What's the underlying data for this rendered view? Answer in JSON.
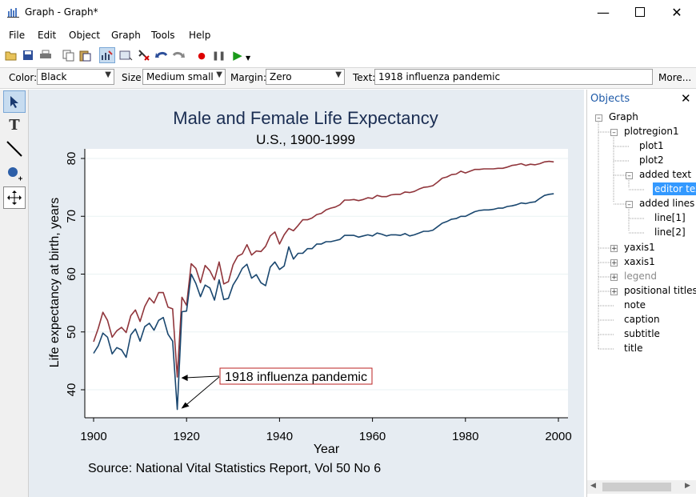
{
  "window": {
    "title": "Graph - Graph*"
  },
  "menu": [
    "File",
    "Edit",
    "Object",
    "Graph",
    "Tools",
    "Help"
  ],
  "propbar": {
    "color_label": "Color:",
    "color_value": "Black",
    "size_label": "Size:",
    "size_value": "Medium small",
    "margin_label": "Margin:",
    "margin_value": "Zero",
    "text_label": "Text:",
    "text_value": "1918 influenza pandemic",
    "more": "More..."
  },
  "objects": {
    "header": "Objects",
    "items": [
      "Graph",
      "plotregion1",
      "plot1",
      "plot2",
      "added text",
      "editor tex",
      "added lines",
      "line[1]",
      "line[2]",
      "yaxis1",
      "xaxis1",
      "legend",
      "positional titles",
      "note",
      "caption",
      "subtitle",
      "title"
    ]
  },
  "graph": {
    "title": "Male and Female Life Expectancy",
    "subtitle": "U.S., 1900-1999",
    "note": "Source: National Vital Statistics Report, Vol 50 No 6",
    "annotation": "1918 influenza pandemic"
  },
  "chart_data": {
    "type": "line",
    "xlabel": "Year",
    "ylabel": "Life expectancy at birth, years",
    "xlim": [
      1900,
      2000
    ],
    "ylim": [
      36,
      82
    ],
    "xticks": [
      1900,
      1920,
      1940,
      1960,
      1980,
      2000
    ],
    "yticks": [
      40,
      50,
      60,
      70,
      80
    ],
    "grid": true,
    "legend": "none",
    "colors": {
      "female": "#90353b",
      "male": "#1a476f"
    },
    "x": [
      1900,
      1901,
      1902,
      1903,
      1904,
      1905,
      1906,
      1907,
      1908,
      1909,
      1910,
      1911,
      1912,
      1913,
      1914,
      1915,
      1916,
      1917,
      1918,
      1919,
      1920,
      1921,
      1922,
      1923,
      1924,
      1925,
      1926,
      1927,
      1928,
      1929,
      1930,
      1931,
      1932,
      1933,
      1934,
      1935,
      1936,
      1937,
      1938,
      1939,
      1940,
      1941,
      1942,
      1943,
      1944,
      1945,
      1946,
      1947,
      1948,
      1949,
      1950,
      1951,
      1952,
      1953,
      1954,
      1955,
      1956,
      1957,
      1958,
      1959,
      1960,
      1961,
      1962,
      1963,
      1964,
      1965,
      1966,
      1967,
      1968,
      1969,
      1970,
      1971,
      1972,
      1973,
      1974,
      1975,
      1976,
      1977,
      1978,
      1979,
      1980,
      1981,
      1982,
      1983,
      1984,
      1985,
      1986,
      1987,
      1988,
      1989,
      1990,
      1991,
      1992,
      1993,
      1994,
      1995,
      1996,
      1997,
      1998,
      1999
    ],
    "series": [
      {
        "values": [
          48.3,
          50.6,
          53.4,
          52.0,
          49.1,
          50.2,
          50.8,
          49.9,
          52.8,
          53.8,
          51.8,
          54.4,
          55.9,
          55.0,
          56.8,
          56.8,
          54.3,
          54.0,
          42.2,
          56.0,
          54.6,
          61.8,
          61.0,
          58.5,
          61.5,
          60.6,
          59.0,
          62.1,
          58.3,
          58.7,
          61.6,
          63.1,
          63.5,
          65.1,
          63.3,
          64.0,
          63.9,
          64.8,
          66.6,
          67.3,
          65.2,
          66.8,
          67.9,
          67.5,
          68.4,
          69.4,
          69.4,
          69.7,
          70.3,
          70.5,
          71.1,
          71.4,
          71.6,
          72.0,
          72.8,
          72.8,
          72.9,
          72.7,
          72.9,
          73.2,
          73.1,
          73.6,
          73.4,
          73.4,
          73.7,
          73.8,
          73.8,
          74.2,
          74.1,
          74.3,
          74.7,
          75.0,
          75.1,
          75.3,
          75.9,
          76.6,
          76.8,
          77.2,
          77.3,
          77.8,
          77.5,
          77.8,
          78.1,
          78.1,
          78.2,
          78.2,
          78.2,
          78.3,
          78.3,
          78.5,
          78.8,
          78.9,
          79.1,
          78.8,
          79.0,
          78.9,
          79.1,
          79.4,
          79.5,
          79.4
        ]
      },
      {
        "values": [
          46.3,
          47.6,
          49.8,
          49.1,
          46.2,
          47.3,
          46.9,
          45.6,
          49.5,
          50.5,
          48.4,
          50.9,
          51.5,
          50.3,
          52.0,
          52.5,
          49.6,
          48.4,
          36.6,
          53.5,
          53.6,
          60.0,
          58.4,
          56.1,
          58.1,
          57.6,
          55.5,
          59.0,
          55.6,
          55.8,
          58.1,
          59.4,
          61.0,
          61.7,
          59.3,
          59.9,
          58.5,
          58.0,
          61.2,
          62.1,
          60.8,
          61.4,
          64.7,
          62.6,
          63.6,
          63.6,
          64.4,
          64.4,
          65.2,
          65.2,
          65.6,
          65.6,
          65.8,
          66.0,
          66.7,
          66.7,
          66.7,
          66.4,
          66.6,
          66.8,
          66.6,
          67.1,
          66.9,
          66.6,
          66.8,
          66.8,
          66.7,
          67.0,
          66.6,
          66.8,
          67.1,
          67.4,
          67.4,
          67.6,
          68.2,
          68.8,
          69.1,
          69.5,
          69.6,
          70.0,
          70.0,
          70.4,
          70.8,
          71.0,
          71.1,
          71.1,
          71.2,
          71.4,
          71.4,
          71.7,
          71.8,
          72.0,
          72.3,
          72.2,
          72.4,
          72.5,
          73.1,
          73.6,
          73.8,
          73.9
        ]
      }
    ]
  }
}
